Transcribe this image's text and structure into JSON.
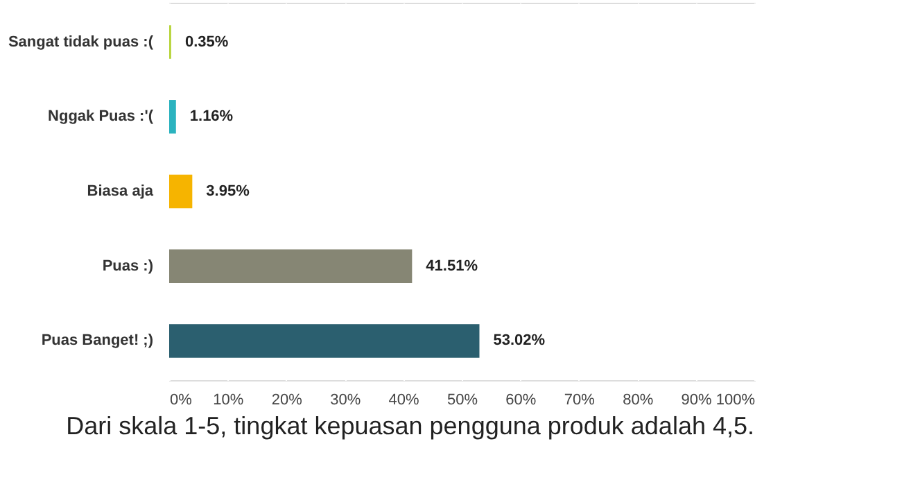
{
  "chart_data": {
    "type": "bar",
    "orientation": "horizontal",
    "categories": [
      "Sangat tidak puas :(",
      "Nggak Puas :'(",
      "Biasa aja",
      "Puas :)",
      "Puas Banget! ;)"
    ],
    "values": [
      0.35,
      1.16,
      3.95,
      41.51,
      53.02
    ],
    "colors": [
      "#b9d53f",
      "#2bb3bf",
      "#f6b400",
      "#868674",
      "#2b5f6f"
    ],
    "value_labels": [
      "0.35%",
      "1.16%",
      "3.95%",
      "41.51%",
      "53.02%"
    ],
    "xlim": [
      0,
      100
    ],
    "xticks": [
      {
        "value": 0,
        "label": "0%"
      },
      {
        "value": 10,
        "label": "10%"
      },
      {
        "value": 20,
        "label": "20%"
      },
      {
        "value": 30,
        "label": "30%"
      },
      {
        "value": 40,
        "label": "40%"
      },
      {
        "value": 50,
        "label": "50%"
      },
      {
        "value": 60,
        "label": "60%"
      },
      {
        "value": 70,
        "label": "70%"
      },
      {
        "value": 80,
        "label": "80%"
      },
      {
        "value": 90,
        "label": "90%"
      },
      {
        "value": 100,
        "label": "100%"
      }
    ],
    "grid": "x",
    "annotations": [
      "Dari skala 1-5, tingkat kepuasan pengguna produk adalah 4,5."
    ]
  }
}
